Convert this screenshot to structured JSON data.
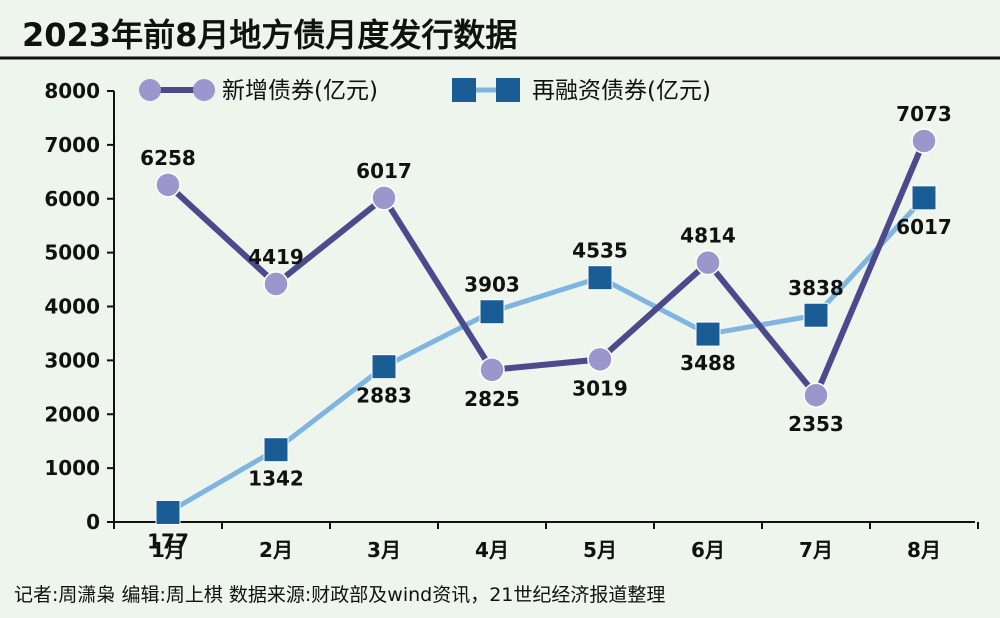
{
  "title": "2023年前8月地方债月度发行数据",
  "footer": "记者:周潇枭   编辑:周上棋   数据来源:财政部及wind资讯，21世纪经济报道整理",
  "colors": {
    "background": "#eef5ec",
    "series_new": "#4a4a8c",
    "series_new_marker": "#9b96cc",
    "series_refi": "#7fb5e0",
    "series_refi_marker": "#1a5d94"
  },
  "chart_data": {
    "type": "line",
    "categories": [
      "1月",
      "2月",
      "3月",
      "4月",
      "5月",
      "6月",
      "7月",
      "8月"
    ],
    "series": [
      {
        "name": "新增债券(亿元)",
        "marker": "circle",
        "values": [
          6258,
          4419,
          6017,
          2825,
          3019,
          4814,
          2353,
          7073
        ]
      },
      {
        "name": "再融资债券(亿元)",
        "marker": "square",
        "values": [
          177,
          1342,
          2883,
          3903,
          4535,
          3488,
          3838,
          6017
        ]
      }
    ],
    "ylim": [
      0,
      8000
    ],
    "yticks": [
      "0",
      "1000",
      "2000",
      "3000",
      "4000",
      "5000",
      "6000",
      "7000",
      "8000"
    ],
    "legend_position": "top",
    "grid": false
  }
}
